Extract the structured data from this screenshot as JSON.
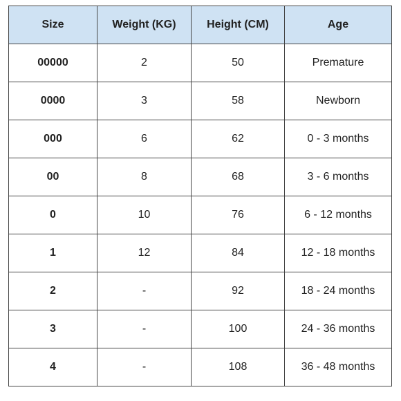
{
  "table": {
    "header": [
      "Size",
      "Weight (KG)",
      "Height (CM)",
      "Age"
    ],
    "rows": [
      [
        "00000",
        "2",
        "50",
        "Premature"
      ],
      [
        "0000",
        "3",
        "58",
        "Newborn"
      ],
      [
        "000",
        "6",
        "62",
        "0 - 3 months"
      ],
      [
        "00",
        "8",
        "68",
        "3 - 6 months"
      ],
      [
        "0",
        "10",
        "76",
        "6 - 12 months"
      ],
      [
        "1",
        "12",
        "84",
        "12 - 18 months"
      ],
      [
        "2",
        "-",
        "92",
        "18 - 24 months"
      ],
      [
        "3",
        "-",
        "100",
        "24 - 36 months"
      ],
      [
        "4",
        "-",
        "108",
        "36 - 48 months"
      ]
    ]
  }
}
